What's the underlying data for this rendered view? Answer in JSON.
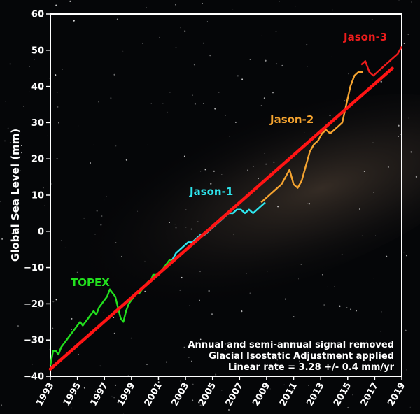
{
  "chart_data": {
    "type": "line",
    "title": "",
    "xlabel": "",
    "ylabel": "Global Sea Level (mm)",
    "xlim": [
      1993,
      2019
    ],
    "ylim": [
      -40,
      60
    ],
    "x_ticks": [
      "1993",
      "1995",
      "1997",
      "1999",
      "2001",
      "2003",
      "2005",
      "2007",
      "2009",
      "2011",
      "2013",
      "2015",
      "2017",
      "2019"
    ],
    "y_ticks": [
      "−40",
      "−30",
      "−20",
      "−10",
      "0",
      "10",
      "20",
      "30",
      "40",
      "50",
      "60"
    ],
    "grid": false,
    "colors": {
      "topex": "#22e01e",
      "jason1": "#2ee6ee",
      "jason2": "#f5a430",
      "jason3": "#ee1c1c",
      "trend": "#ff1414"
    },
    "series": [
      {
        "name": "TOPEX",
        "x": [
          1993.0,
          1993.2,
          1993.4,
          1993.6,
          1993.8,
          1994.0,
          1994.2,
          1994.4,
          1994.6,
          1994.8,
          1995.0,
          1995.2,
          1995.4,
          1995.6,
          1995.8,
          1996.0,
          1996.2,
          1996.4,
          1996.6,
          1996.8,
          1997.0,
          1997.2,
          1997.4,
          1997.6,
          1997.8,
          1998.0,
          1998.2,
          1998.4,
          1998.6,
          1998.8,
          1999.0,
          1999.2,
          1999.4,
          1999.6,
          1999.8,
          2000.0,
          2000.2,
          2000.4,
          2000.6,
          2000.8,
          2001.0,
          2001.2,
          2001.4,
          2001.6,
          2001.8,
          2002.0
        ],
        "y": [
          -37,
          -33,
          -33,
          -34,
          -32,
          -31,
          -30,
          -29,
          -28,
          -27,
          -26,
          -25,
          -26,
          -25,
          -24,
          -23,
          -22,
          -23,
          -21,
          -20,
          -19,
          -18,
          -16,
          -17,
          -18,
          -21,
          -24,
          -25,
          -22,
          -20,
          -19,
          -18,
          -17,
          -17,
          -16,
          -15,
          -14,
          -14,
          -12,
          -12,
          -12,
          -11,
          -10,
          -9,
          -8,
          -8
        ]
      },
      {
        "name": "Jason-1",
        "x": [
          2002.0,
          2002.3,
          2002.6,
          2002.9,
          2003.2,
          2003.5,
          2003.8,
          2004.1,
          2004.4,
          2004.7,
          2005.0,
          2005.3,
          2005.6,
          2005.9,
          2006.2,
          2006.5,
          2006.8,
          2007.1,
          2007.4,
          2007.7,
          2008.0,
          2008.3,
          2008.6,
          2008.9
        ],
        "y": [
          -8,
          -6,
          -5,
          -4,
          -3,
          -3,
          -2,
          -1,
          -1,
          0,
          1,
          2,
          3,
          4,
          5,
          5,
          6,
          6,
          5,
          6,
          5,
          6,
          7,
          8
        ]
      },
      {
        "name": "Jason-2",
        "x": [
          2008.6,
          2008.9,
          2009.2,
          2009.5,
          2009.8,
          2010.1,
          2010.4,
          2010.7,
          2011.0,
          2011.3,
          2011.6,
          2011.9,
          2012.2,
          2012.5,
          2012.8,
          2013.1,
          2013.4,
          2013.7,
          2014.0,
          2014.3,
          2014.6,
          2014.9,
          2015.2,
          2015.5,
          2015.8,
          2016.1
        ],
        "y": [
          8,
          9,
          10,
          11,
          12,
          13,
          15,
          17,
          13,
          12,
          14,
          18,
          22,
          24,
          25,
          27,
          28,
          27,
          28,
          29,
          30,
          35,
          40,
          43,
          44,
          44
        ]
      },
      {
        "name": "Jason-3",
        "x": [
          2016.0,
          2016.3,
          2016.6,
          2016.9,
          2017.2,
          2017.5,
          2017.8,
          2018.1,
          2018.4,
          2018.7,
          2019.0
        ],
        "y": [
          46,
          47,
          44,
          43,
          44,
          45,
          46,
          47,
          48,
          49,
          51
        ]
      }
    ],
    "trend": {
      "x": [
        1993.0,
        2018.3
      ],
      "y": [
        -38,
        45
      ]
    },
    "annotations": [
      "Annual and semi-annual signal removed",
      "Glacial Isostatic Adjustment applied",
      "Linear rate =  3.28 +/- 0.4 mm/yr"
    ]
  }
}
